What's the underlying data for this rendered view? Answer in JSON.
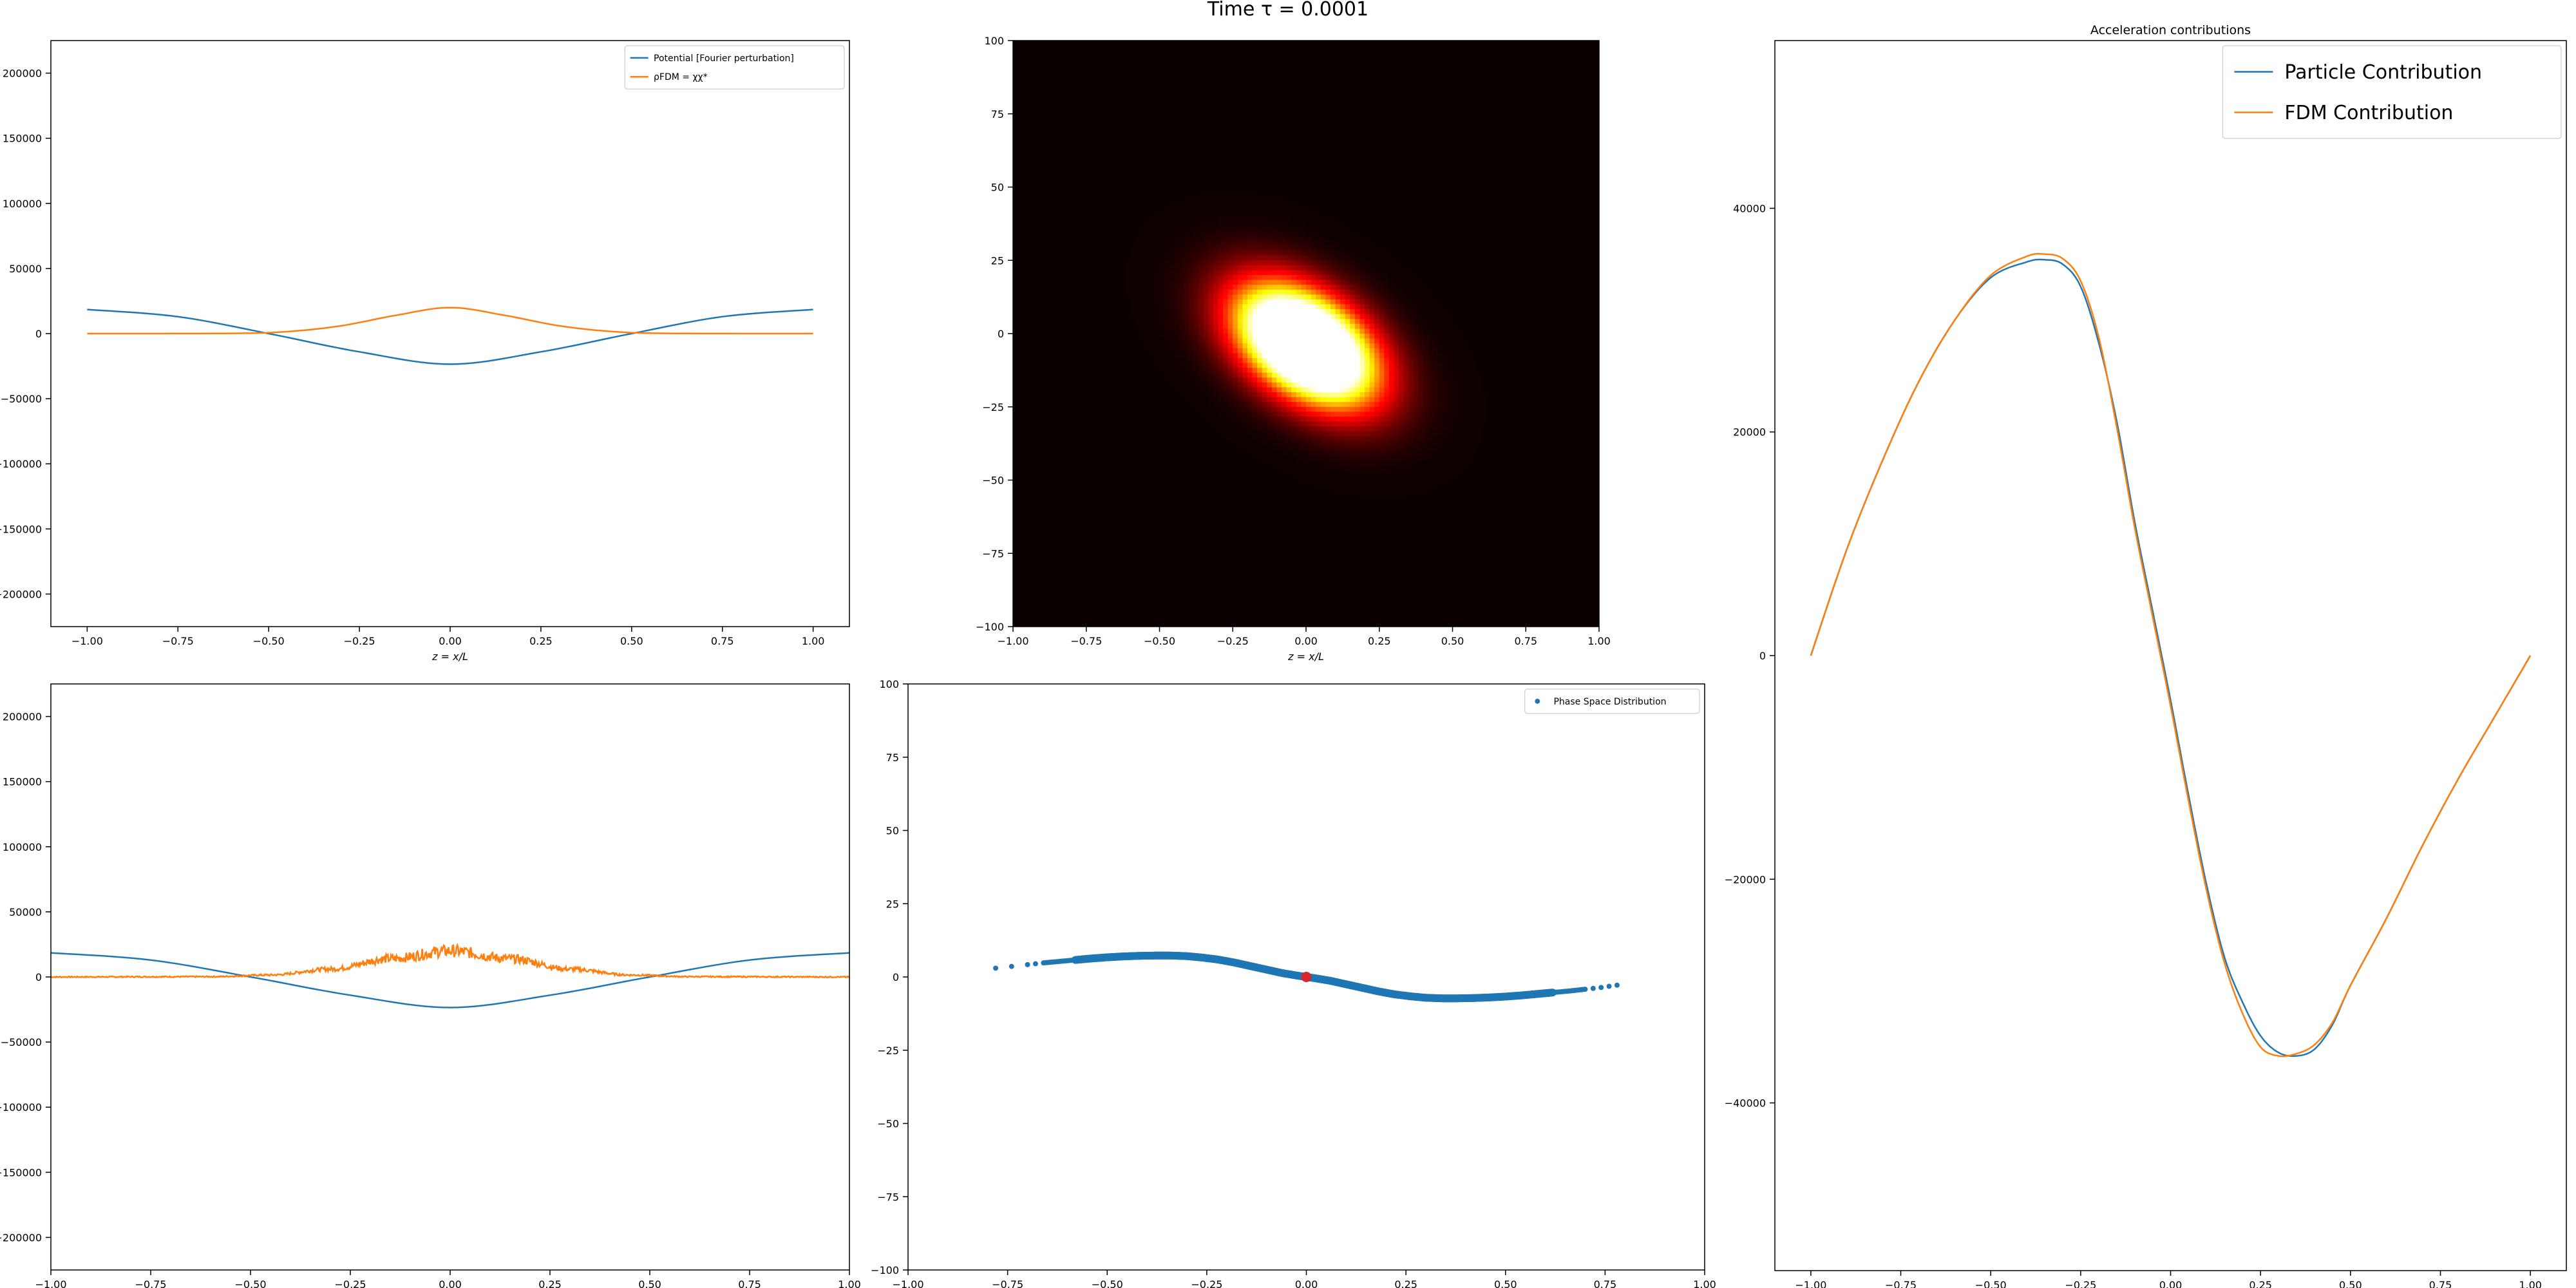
{
  "figure": {
    "suptitle": "Time τ = 0.0001",
    "colors": {
      "blue": "#1f77b4",
      "orange": "#ff7f0e",
      "marker_red": "#d62728"
    }
  },
  "chart_data": [
    {
      "id": "top-left",
      "type": "line",
      "title": "",
      "xlabel": "z = x/L",
      "ylabel": "",
      "xlim": [
        -1.1,
        1.1
      ],
      "ylim": [
        -225000,
        225000
      ],
      "xticks": [
        -1.0,
        -0.75,
        -0.5,
        -0.25,
        0.0,
        0.25,
        0.5,
        0.75,
        1.0
      ],
      "xtick_labels": [
        "−1.00",
        "−0.75",
        "−0.50",
        "−0.25",
        "0.00",
        "0.25",
        "0.50",
        "0.75",
        "1.00"
      ],
      "yticks": [
        -200000,
        -150000,
        -100000,
        -50000,
        0,
        50000,
        100000,
        150000,
        200000
      ],
      "ytick_labels": [
        "−200000",
        "−150000",
        "−100000",
        "−50000",
        "0",
        "50000",
        "100000",
        "150000",
        "200000"
      ],
      "legend": "top-right",
      "grid": false,
      "series": [
        {
          "name": "Potential [Fourier perturbation]",
          "color": "#1f77b4",
          "x": [
            -1.0,
            -0.75,
            -0.5,
            -0.25,
            0.0,
            0.25,
            0.5,
            0.75,
            1.0
          ],
          "y": [
            18500,
            13000,
            0,
            -14000,
            -23500,
            -14000,
            0,
            13000,
            18500
          ]
        },
        {
          "name": "ρFDM = χχ*",
          "color": "#ff7f0e",
          "x": [
            -1.0,
            -0.6,
            -0.45,
            -0.3,
            -0.15,
            0.0,
            0.15,
            0.3,
            0.45,
            0.6,
            1.0
          ],
          "y": [
            0,
            200,
            1500,
            6000,
            14000,
            20000,
            14000,
            6000,
            1500,
            200,
            0
          ]
        }
      ]
    },
    {
      "id": "top-middle",
      "type": "heatmap",
      "title": "",
      "xlabel": "z = x/L",
      "ylabel": "",
      "xlim": [
        -1.0,
        1.0
      ],
      "ylim": [
        -100,
        100
      ],
      "xticks": [
        -1.0,
        -0.75,
        -0.5,
        -0.25,
        0.0,
        0.25,
        0.5,
        0.75,
        1.0
      ],
      "xtick_labels": [
        "−1.00",
        "−0.75",
        "−0.50",
        "−0.25",
        "0.00",
        "0.25",
        "0.50",
        "0.75",
        "1.00"
      ],
      "yticks": [
        -100,
        -75,
        -50,
        -25,
        0,
        25,
        50,
        75,
        100
      ],
      "ytick_labels": [
        "−100",
        "−75",
        "−50",
        "−25",
        "0",
        "25",
        "50",
        "75",
        "100"
      ],
      "colormap": "hot",
      "blob": {
        "center_x": 0.0,
        "center_y": -4,
        "sigma_major_x": 0.18,
        "sigma_minor_x": 0.11,
        "tilt_deg": -35,
        "peak": 1.0
      }
    },
    {
      "id": "right",
      "type": "line",
      "title": "Acceleration contributions",
      "xlabel": "",
      "ylabel": "",
      "xlim": [
        -1.1,
        1.1
      ],
      "ylim": [
        -55000,
        55000
      ],
      "xticks": [
        -1.0,
        -0.75,
        -0.5,
        -0.25,
        0.0,
        0.25,
        0.5,
        0.75,
        1.0
      ],
      "xtick_labels": [
        "−1.00",
        "−0.75",
        "−0.50",
        "−0.25",
        "0.00",
        "0.25",
        "0.50",
        "0.75",
        "1.00"
      ],
      "yticks": [
        -40000,
        -20000,
        0,
        20000,
        40000
      ],
      "ytick_labels": [
        "−40000",
        "−20000",
        "0",
        "20000",
        "40000"
      ],
      "legend": "top-right",
      "grid": false,
      "series": [
        {
          "name": "Particle Contribution",
          "color": "#1f77b4",
          "x": [
            -1.0,
            -0.9,
            -0.8,
            -0.7,
            -0.6,
            -0.5,
            -0.4,
            -0.35,
            -0.3,
            -0.25,
            -0.2,
            -0.15,
            -0.1,
            -0.05,
            0.0,
            0.05,
            0.1,
            0.15,
            0.2,
            0.25,
            0.3,
            0.35,
            0.4,
            0.45,
            0.5,
            0.6,
            0.7,
            0.8,
            0.9,
            1.0
          ],
          "y": [
            0,
            9500,
            17500,
            24500,
            30000,
            33800,
            35200,
            35400,
            35000,
            33000,
            28000,
            21000,
            12000,
            4000,
            -4000,
            -12500,
            -20500,
            -27000,
            -31000,
            -34000,
            -35500,
            -35800,
            -35200,
            -33000,
            -29500,
            -23500,
            -17000,
            -11000,
            -5500,
            0
          ]
        },
        {
          "name": "FDM Contribution",
          "color": "#ff7f0e",
          "x": [
            -1.0,
            -0.9,
            -0.8,
            -0.7,
            -0.6,
            -0.5,
            -0.4,
            -0.35,
            -0.3,
            -0.25,
            -0.2,
            -0.15,
            -0.1,
            -0.05,
            0.0,
            0.05,
            0.1,
            0.15,
            0.2,
            0.25,
            0.3,
            0.35,
            0.4,
            0.45,
            0.5,
            0.6,
            0.7,
            0.8,
            0.9,
            1.0
          ],
          "y": [
            0,
            9500,
            17500,
            24500,
            30000,
            34000,
            35700,
            35900,
            35500,
            33500,
            28500,
            20500,
            11500,
            3500,
            -4500,
            -13000,
            -21000,
            -27500,
            -32000,
            -35000,
            -35800,
            -35600,
            -34800,
            -32800,
            -29500,
            -23500,
            -17000,
            -11000,
            -5500,
            0
          ]
        }
      ]
    },
    {
      "id": "bottom-left",
      "type": "line",
      "title": "",
      "xlabel": "",
      "ylabel": "",
      "xlim": [
        -1.0,
        1.0
      ],
      "ylim": [
        -225000,
        225000
      ],
      "xticks": [
        -1.0,
        -0.75,
        -0.5,
        -0.25,
        0.0,
        0.25,
        0.5,
        0.75,
        1.0
      ],
      "xtick_labels": [
        "−1.00",
        "−0.75",
        "−0.50",
        "−0.25",
        "0.00",
        "0.25",
        "0.50",
        "0.75",
        "1.00"
      ],
      "yticks": [
        -200000,
        -150000,
        -100000,
        -50000,
        0,
        50000,
        100000,
        150000,
        200000
      ],
      "ytick_labels": [
        "−200000",
        "−150000",
        "−100000",
        "−50000",
        "0",
        "50000",
        "100000",
        "150000",
        "200000"
      ],
      "grid": false,
      "series": [
        {
          "color": "#1f77b4",
          "x": [
            -1.0,
            -0.75,
            -0.5,
            -0.25,
            0.0,
            0.25,
            0.5,
            0.75,
            1.0
          ],
          "y": [
            18500,
            13000,
            0,
            -14000,
            -23500,
            -14000,
            0,
            13000,
            18500
          ]
        },
        {
          "color": "#ff7f0e",
          "noisy": true,
          "x": [
            -1.0,
            -0.6,
            -0.45,
            -0.3,
            -0.15,
            0.0,
            0.15,
            0.3,
            0.45,
            0.6,
            1.0
          ],
          "y": [
            0,
            200,
            1500,
            6000,
            14000,
            20000,
            14000,
            6000,
            1500,
            200,
            0
          ]
        }
      ]
    },
    {
      "id": "bottom-middle",
      "type": "scatter",
      "title": "",
      "xlabel": "",
      "ylabel": "",
      "xlim": [
        -1.0,
        1.0
      ],
      "ylim": [
        -100,
        100
      ],
      "xticks": [
        -1.0,
        -0.75,
        -0.5,
        -0.25,
        0.0,
        0.25,
        0.5,
        0.75,
        1.0
      ],
      "xtick_labels": [
        "−1.00",
        "−0.75",
        "−0.50",
        "−0.25",
        "0.00",
        "0.25",
        "0.50",
        "0.75",
        "1.00"
      ],
      "yticks": [
        -100,
        -75,
        -50,
        -25,
        0,
        25,
        50,
        75,
        100
      ],
      "ytick_labels": [
        "−100",
        "−75",
        "−50",
        "−25",
        "0",
        "25",
        "50",
        "75",
        "100"
      ],
      "legend": "top-right",
      "grid": false,
      "series": [
        {
          "name": "Phase Space Distribution",
          "color": "#1f77b4",
          "x": [
            -0.78,
            -0.7,
            -0.66,
            -0.62,
            -0.58,
            -0.54,
            -0.5,
            -0.46,
            -0.42,
            -0.38,
            -0.34,
            -0.3,
            -0.26,
            -0.22,
            -0.18,
            -0.14,
            -0.1,
            -0.06,
            -0.02,
            0.02,
            0.06,
            0.1,
            0.14,
            0.18,
            0.22,
            0.26,
            0.3,
            0.34,
            0.38,
            0.42,
            0.46,
            0.5,
            0.54,
            0.58,
            0.62,
            0.66,
            0.7,
            0.74,
            0.78
          ],
          "y": [
            3,
            4.2,
            4.8,
            5.3,
            5.8,
            6.3,
            6.7,
            7.0,
            7.2,
            7.3,
            7.3,
            7.1,
            6.6,
            5.9,
            4.9,
            3.7,
            2.5,
            1.3,
            0.4,
            -0.4,
            -1.3,
            -2.5,
            -3.7,
            -4.9,
            -5.9,
            -6.6,
            -7.1,
            -7.3,
            -7.3,
            -7.2,
            -7.0,
            -6.7,
            -6.3,
            -5.8,
            -5.3,
            -4.8,
            -4.2,
            -3.6,
            -2.8
          ]
        }
      ],
      "highlight_point": {
        "x": 0.0,
        "y": 0.0,
        "color": "#d62728"
      }
    }
  ]
}
